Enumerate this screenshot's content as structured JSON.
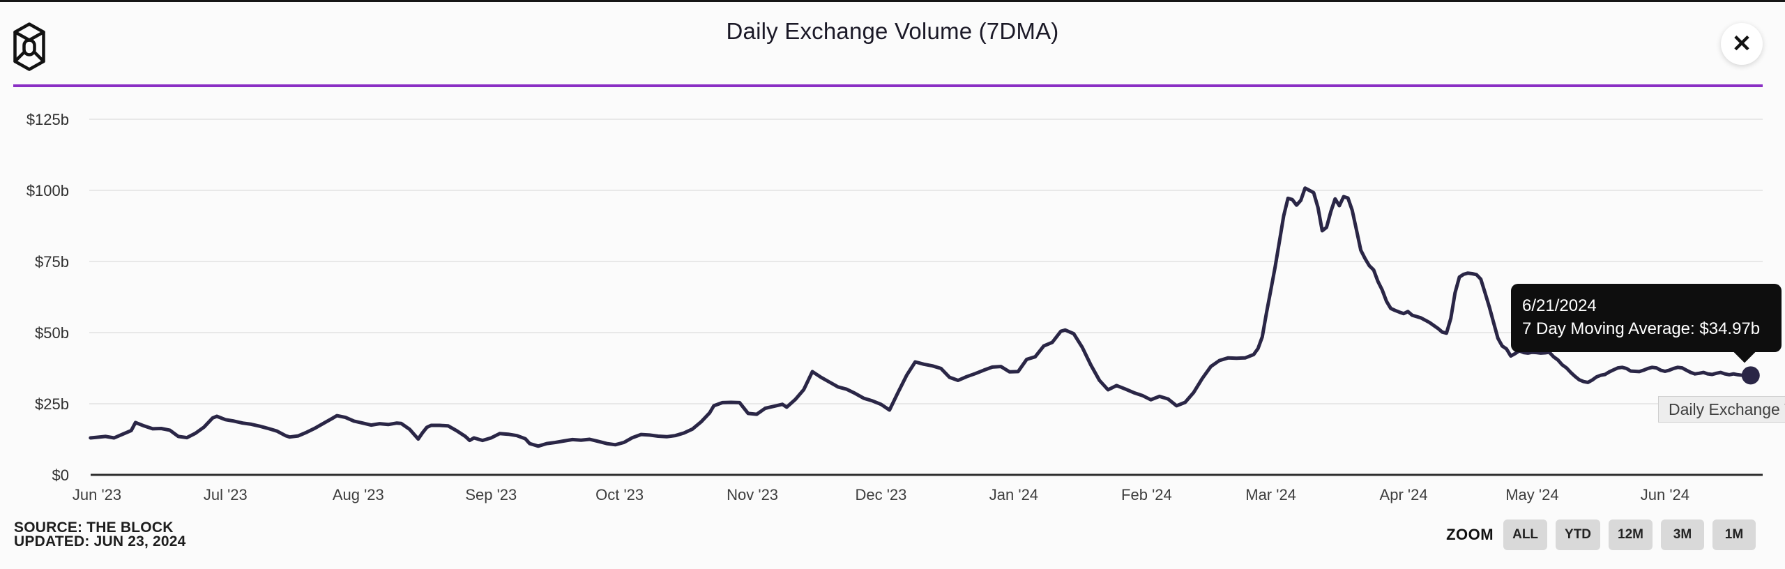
{
  "page": {
    "title": "Daily Exchange Volume (7DMA)"
  },
  "header": {
    "close_icon_glyph": "✕",
    "logo_name": "the-block-logo"
  },
  "tooltip": {
    "date": "6/21/2024",
    "line2": "7 Day Moving Average: $34.97b",
    "series_label": "7 Day Moving Average",
    "value": "$34.97b"
  },
  "legend": {
    "label": "Daily Exchange V"
  },
  "footer": {
    "source": "SOURCE: THE BLOCK",
    "updated": "UPDATED: JUN 23, 2024"
  },
  "zoom_controls": {
    "label": "ZOOM",
    "buttons": [
      "ALL",
      "YTD",
      "12M",
      "3M",
      "1M"
    ]
  },
  "chart_data": {
    "type": "line",
    "title": "Daily Exchange Volume (7DMA)",
    "grid": "horizontal",
    "legend_position": "bottom-right",
    "colors": {
      "line": "#2a2646",
      "grid": "#e8e8e8",
      "axis": "#2d2d2d",
      "tick_text": "#3a3a3a"
    },
    "y_axis": {
      "range": [
        0,
        125
      ],
      "unit": "$ billions",
      "ticks": [
        {
          "label": "$0",
          "value": 0
        },
        {
          "label": "$25b",
          "value": 25
        },
        {
          "label": "$50b",
          "value": 50
        },
        {
          "label": "$75b",
          "value": 75
        },
        {
          "label": "$100b",
          "value": 100
        },
        {
          "label": "$125b",
          "value": 125
        }
      ]
    },
    "x_axis": {
      "unit": "days since 2023-06-01",
      "ticks": [
        {
          "label": "Jun '23",
          "day": 0
        },
        {
          "label": "Jul '23",
          "day": 30
        },
        {
          "label": "Aug '23",
          "day": 61
        },
        {
          "label": "Sep '23",
          "day": 92
        },
        {
          "label": "Oct '23",
          "day": 122
        },
        {
          "label": "Nov '23",
          "day": 153
        },
        {
          "label": "Dec '23",
          "day": 183
        },
        {
          "label": "Jan '24",
          "day": 214
        },
        {
          "label": "Feb '24",
          "day": 245
        },
        {
          "label": "Mar '24",
          "day": 274
        },
        {
          "label": "Apr '24",
          "day": 305
        },
        {
          "label": "May '24",
          "day": 335
        },
        {
          "label": "Jun '24",
          "day": 366
        }
      ]
    },
    "series": [
      {
        "name": "Daily Exchange Volume (7DMA)",
        "points": [
          [
            -1.5,
            13.0
          ],
          [
            0,
            13.2
          ],
          [
            2,
            13.5
          ],
          [
            4,
            13.0
          ],
          [
            6,
            14.3
          ],
          [
            8,
            15.6
          ],
          [
            9,
            18.4
          ],
          [
            11,
            17.2
          ],
          [
            13,
            16.2
          ],
          [
            15,
            16.3
          ],
          [
            17,
            15.7
          ],
          [
            19,
            13.5
          ],
          [
            21,
            13.1
          ],
          [
            23,
            14.6
          ],
          [
            25,
            16.8
          ],
          [
            27,
            20.0
          ],
          [
            28,
            20.6
          ],
          [
            30,
            19.4
          ],
          [
            32,
            18.9
          ],
          [
            34,
            18.2
          ],
          [
            36,
            17.8
          ],
          [
            38,
            17.1
          ],
          [
            40,
            16.3
          ],
          [
            42,
            15.4
          ],
          [
            44,
            13.8
          ],
          [
            45,
            13.3
          ],
          [
            47,
            13.7
          ],
          [
            49,
            15.0
          ],
          [
            51,
            16.5
          ],
          [
            53,
            18.2
          ],
          [
            55,
            19.9
          ],
          [
            56,
            20.8
          ],
          [
            58,
            20.2
          ],
          [
            60,
            18.9
          ],
          [
            62,
            18.2
          ],
          [
            64,
            17.5
          ],
          [
            66,
            18.0
          ],
          [
            68,
            17.7
          ],
          [
            70,
            18.2
          ],
          [
            71,
            18.1
          ],
          [
            73,
            16.0
          ],
          [
            75,
            12.6
          ],
          [
            76,
            14.8
          ],
          [
            77,
            16.7
          ],
          [
            78,
            17.4
          ],
          [
            80,
            17.4
          ],
          [
            82,
            17.2
          ],
          [
            84,
            15.5
          ],
          [
            86,
            13.5
          ],
          [
            87,
            12.1
          ],
          [
            88,
            13.0
          ],
          [
            90,
            12.1
          ],
          [
            92,
            13.0
          ],
          [
            94,
            14.5
          ],
          [
            96,
            14.3
          ],
          [
            98,
            13.8
          ],
          [
            100,
            12.7
          ],
          [
            101,
            11.0
          ],
          [
            103,
            10.1
          ],
          [
            105,
            11.0
          ],
          [
            107,
            11.4
          ],
          [
            109,
            11.9
          ],
          [
            111,
            12.4
          ],
          [
            113,
            12.2
          ],
          [
            115,
            12.5
          ],
          [
            117,
            11.8
          ],
          [
            119,
            11.0
          ],
          [
            121,
            10.6
          ],
          [
            123,
            11.4
          ],
          [
            125,
            13.1
          ],
          [
            127,
            14.2
          ],
          [
            129,
            14.0
          ],
          [
            131,
            13.6
          ],
          [
            133,
            13.4
          ],
          [
            135,
            13.8
          ],
          [
            137,
            14.7
          ],
          [
            139,
            16.1
          ],
          [
            141,
            18.6
          ],
          [
            143,
            21.8
          ],
          [
            144,
            24.3
          ],
          [
            146,
            25.4
          ],
          [
            148,
            25.5
          ],
          [
            150,
            25.4
          ],
          [
            152,
            21.6
          ],
          [
            154,
            21.3
          ],
          [
            156,
            23.4
          ],
          [
            158,
            24.1
          ],
          [
            160,
            24.8
          ],
          [
            161,
            23.8
          ],
          [
            163,
            26.5
          ],
          [
            165,
            30.0
          ],
          [
            167,
            36.3
          ],
          [
            169,
            34.3
          ],
          [
            171,
            32.6
          ],
          [
            173,
            30.9
          ],
          [
            175,
            30.1
          ],
          [
            177,
            28.6
          ],
          [
            179,
            26.9
          ],
          [
            181,
            26.0
          ],
          [
            183,
            24.8
          ],
          [
            185,
            22.8
          ],
          [
            187,
            29.0
          ],
          [
            189,
            35.0
          ],
          [
            191,
            39.7
          ],
          [
            193,
            38.9
          ],
          [
            195,
            38.3
          ],
          [
            197,
            37.4
          ],
          [
            199,
            34.3
          ],
          [
            201,
            33.2
          ],
          [
            203,
            34.5
          ],
          [
            205,
            35.6
          ],
          [
            207,
            36.8
          ],
          [
            209,
            37.9
          ],
          [
            211,
            38.1
          ],
          [
            213,
            36.2
          ],
          [
            215,
            36.3
          ],
          [
            217,
            40.6
          ],
          [
            219,
            41.5
          ],
          [
            221,
            45.3
          ],
          [
            223,
            46.6
          ],
          [
            225,
            50.5
          ],
          [
            226,
            50.9
          ],
          [
            228,
            49.6
          ],
          [
            230,
            44.8
          ],
          [
            232,
            38.6
          ],
          [
            234,
            33.2
          ],
          [
            236,
            29.9
          ],
          [
            238,
            31.4
          ],
          [
            240,
            30.2
          ],
          [
            242,
            28.9
          ],
          [
            244,
            27.9
          ],
          [
            246,
            26.4
          ],
          [
            248,
            27.6
          ],
          [
            250,
            26.7
          ],
          [
            252,
            24.3
          ],
          [
            254,
            25.5
          ],
          [
            256,
            29.0
          ],
          [
            258,
            33.9
          ],
          [
            260,
            38.1
          ],
          [
            262,
            40.2
          ],
          [
            264,
            41.1
          ],
          [
            266,
            41.0
          ],
          [
            268,
            41.1
          ],
          [
            270,
            42.3
          ],
          [
            271,
            44.4
          ],
          [
            272,
            48.5
          ],
          [
            273,
            57.0
          ],
          [
            274,
            65.0
          ],
          [
            275,
            73.0
          ],
          [
            276,
            82.0
          ],
          [
            277,
            91.0
          ],
          [
            278,
            97.2
          ],
          [
            279,
            96.8
          ],
          [
            280,
            94.8
          ],
          [
            281,
            96.5
          ],
          [
            282,
            100.8
          ],
          [
            283,
            100.0
          ],
          [
            284,
            99.2
          ],
          [
            285,
            94.0
          ],
          [
            286,
            85.8
          ],
          [
            287,
            87.0
          ],
          [
            288,
            92.5
          ],
          [
            289,
            97.0
          ],
          [
            290,
            94.6
          ],
          [
            291,
            97.8
          ],
          [
            292,
            97.3
          ],
          [
            293,
            93.0
          ],
          [
            294,
            86.0
          ],
          [
            295,
            79.0
          ],
          [
            296,
            76.0
          ],
          [
            297,
            73.5
          ],
          [
            298,
            72.0
          ],
          [
            299,
            68.0
          ],
          [
            300,
            65.0
          ],
          [
            301,
            61.0
          ],
          [
            302,
            58.5
          ],
          [
            303,
            57.8
          ],
          [
            304,
            57.2
          ],
          [
            305,
            56.7
          ],
          [
            306,
            57.4
          ],
          [
            307,
            56.1
          ],
          [
            309,
            55.2
          ],
          [
            311,
            53.6
          ],
          [
            313,
            51.5
          ],
          [
            314,
            50.2
          ],
          [
            315,
            49.8
          ],
          [
            316,
            55.0
          ],
          [
            317,
            64.0
          ],
          [
            318,
            69.5
          ],
          [
            319,
            70.5
          ],
          [
            320,
            70.9
          ],
          [
            321,
            70.7
          ],
          [
            322,
            70.4
          ],
          [
            323,
            68.8
          ],
          [
            324,
            64.0
          ],
          [
            325,
            59.0
          ],
          [
            326,
            53.5
          ],
          [
            327,
            48.0
          ],
          [
            328,
            45.3
          ],
          [
            329,
            44.3
          ],
          [
            330,
            41.8
          ],
          [
            331,
            42.6
          ],
          [
            332,
            43.6
          ],
          [
            333,
            43.0
          ],
          [
            334,
            42.8
          ],
          [
            335,
            43.1
          ],
          [
            336,
            43.0
          ],
          [
            337,
            42.8
          ],
          [
            338,
            42.9
          ],
          [
            339,
            43.1
          ],
          [
            340,
            41.5
          ],
          [
            341,
            40.4
          ],
          [
            342,
            38.7
          ],
          [
            343,
            37.6
          ],
          [
            344,
            36.0
          ],
          [
            345,
            34.6
          ],
          [
            346,
            33.4
          ],
          [
            347,
            32.8
          ],
          [
            348,
            32.5
          ],
          [
            349,
            33.3
          ],
          [
            350,
            34.4
          ],
          [
            351,
            35.0
          ],
          [
            352,
            35.3
          ],
          [
            353,
            36.2
          ],
          [
            354,
            36.9
          ],
          [
            355,
            37.6
          ],
          [
            356,
            37.8
          ],
          [
            357,
            37.4
          ],
          [
            358,
            36.5
          ],
          [
            360,
            36.3
          ],
          [
            361,
            36.8
          ],
          [
            362,
            37.4
          ],
          [
            363,
            37.8
          ],
          [
            364,
            37.6
          ],
          [
            365,
            36.8
          ],
          [
            366,
            36.4
          ],
          [
            367,
            36.8
          ],
          [
            368,
            37.4
          ],
          [
            369,
            37.8
          ],
          [
            370,
            37.6
          ],
          [
            371,
            36.8
          ],
          [
            372,
            36.0
          ],
          [
            373,
            35.5
          ],
          [
            374,
            35.7
          ],
          [
            375,
            36.0
          ],
          [
            376,
            35.5
          ],
          [
            377,
            35.3
          ],
          [
            378,
            35.7
          ],
          [
            379,
            36.0
          ],
          [
            380,
            35.5
          ],
          [
            381,
            35.2
          ],
          [
            382,
            35.5
          ],
          [
            383,
            35.2
          ],
          [
            384,
            35.0
          ],
          [
            385,
            34.9
          ],
          [
            386,
            35.0
          ]
        ]
      }
    ],
    "end_marker": {
      "date": "6/21/2024",
      "day": 386,
      "value": 34.97,
      "value_label": "$34.97b"
    }
  }
}
